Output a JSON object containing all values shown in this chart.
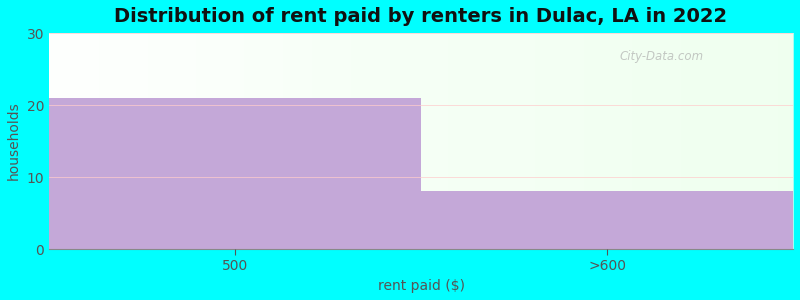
{
  "categories": [
    "500",
    ">600"
  ],
  "values": [
    21,
    8
  ],
  "bar_color": "#c4a8d8",
  "title": "Distribution of rent paid by renters in Dulac, LA in 2022",
  "xlabel": "rent paid ($)",
  "ylabel": "households",
  "ylim": [
    0,
    30
  ],
  "yticks": [
    0,
    10,
    20,
    30
  ],
  "title_fontsize": 14,
  "label_fontsize": 10,
  "tick_fontsize": 10,
  "background_color": "#00ffff",
  "plot_bg_color": "#f0fff0",
  "watermark": "City-Data.com",
  "x_positions": [
    0.25,
    0.75
  ],
  "bar_width": 0.5
}
